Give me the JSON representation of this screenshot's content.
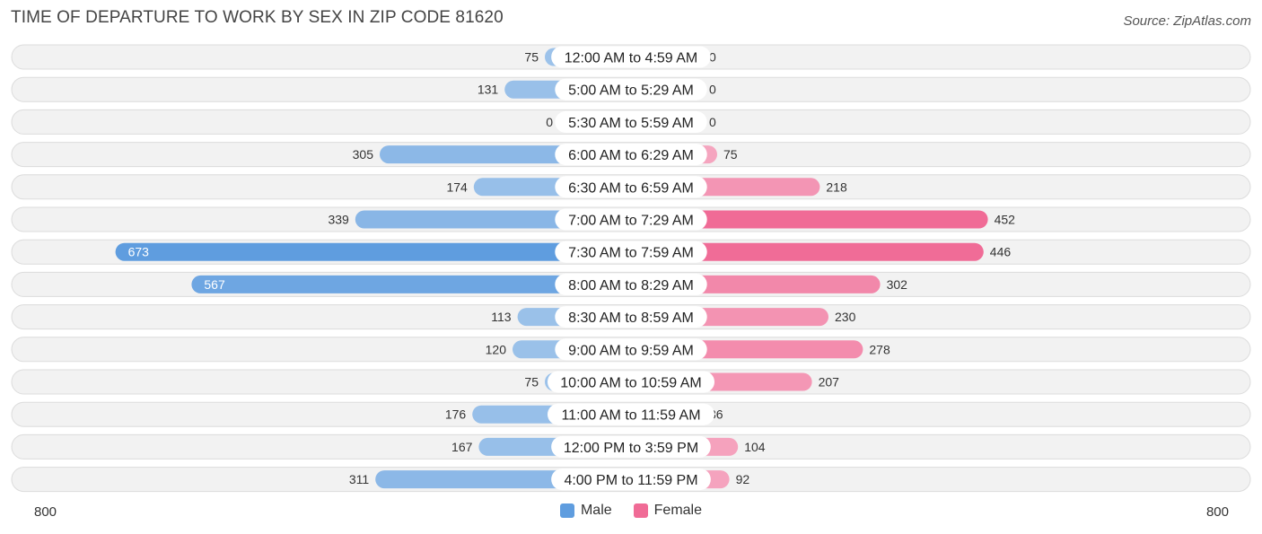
{
  "title": "TIME OF DEPARTURE TO WORK BY SEX IN ZIP CODE 81620",
  "source": "Source: ZipAtlas.com",
  "colors": {
    "male_light": "#9ec3ea",
    "male_dark": "#5f9ddf",
    "female_light": "#f5a8c1",
    "female_dark": "#f06b96",
    "row_bg": "#f2f2f2"
  },
  "legend": {
    "male_label": "Male",
    "female_label": "Female"
  },
  "axis": {
    "left_label": "800",
    "right_label": "800"
  },
  "chart_data": {
    "type": "bar",
    "orientation": "horizontal-diverging",
    "categories": [
      "12:00 AM to 4:59 AM",
      "5:00 AM to 5:29 AM",
      "5:30 AM to 5:59 AM",
      "6:00 AM to 6:29 AM",
      "6:30 AM to 6:59 AM",
      "7:00 AM to 7:29 AM",
      "7:30 AM to 7:59 AM",
      "8:00 AM to 8:29 AM",
      "8:30 AM to 8:59 AM",
      "9:00 AM to 9:59 AM",
      "10:00 AM to 10:59 AM",
      "11:00 AM to 11:59 AM",
      "12:00 PM to 3:59 PM",
      "4:00 PM to 11:59 PM"
    ],
    "series": [
      {
        "name": "Male",
        "values": [
          75,
          131,
          0,
          305,
          174,
          339,
          673,
          567,
          113,
          120,
          75,
          176,
          167,
          311
        ]
      },
      {
        "name": "Female",
        "values": [
          0,
          0,
          0,
          75,
          218,
          452,
          446,
          302,
          230,
          278,
          207,
          36,
          104,
          92
        ]
      }
    ],
    "xlim": [
      -800,
      800
    ],
    "legend_position": "bottom-center"
  }
}
